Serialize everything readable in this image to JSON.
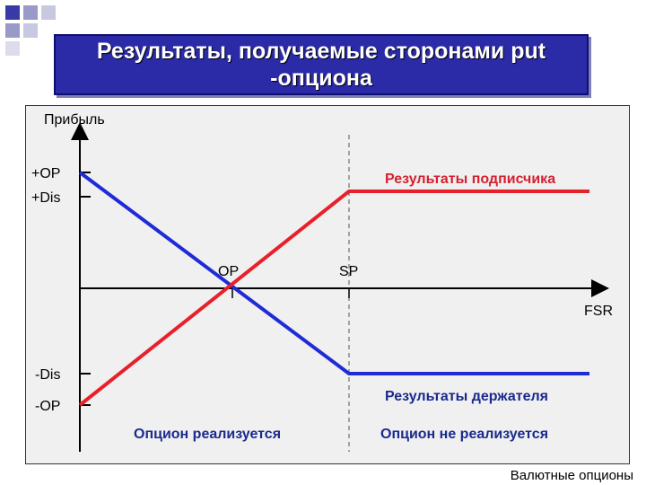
{
  "title": "Результаты, получаемые сторонами put -опциона",
  "diagram": {
    "y_axis_label": "Прибыль",
    "x_axis_label": "FSR",
    "y_ticks": {
      "op_plus": "+OP",
      "dis_plus": "+Dis",
      "dis_minus": "-Dis",
      "op_minus": "-OP"
    },
    "x_ticks": {
      "op": "OP",
      "sp": "SP"
    },
    "writer_label": "Результаты подписчика",
    "holder_label": "Результаты держателя",
    "exercised_label": "Опцион реализуется",
    "not_exercised_label": "Опцион не реализуется",
    "colors": {
      "writer": "#e8202a",
      "holder": "#1f2bd6",
      "writer_text": "#d42030",
      "holder_text": "#1a2a8c",
      "title_bg": "#2b2ba8"
    }
  },
  "footer": "Валютные опционы"
}
